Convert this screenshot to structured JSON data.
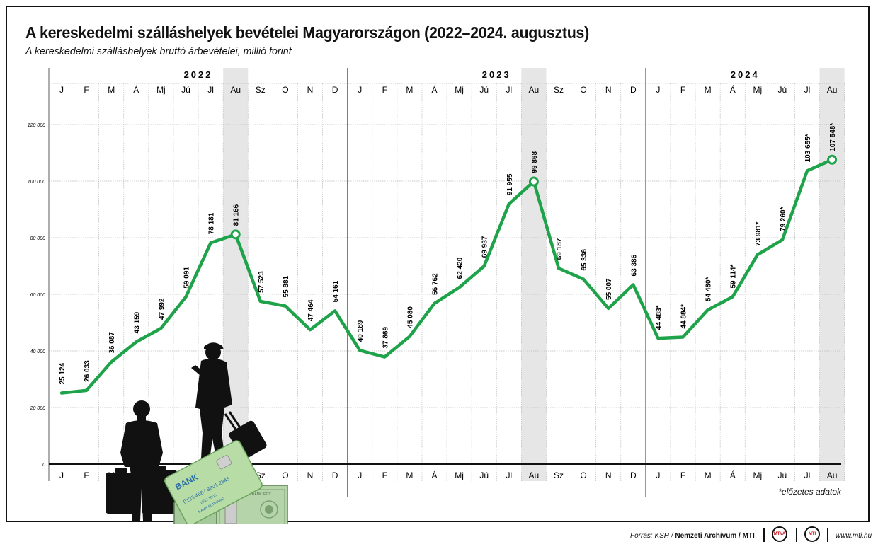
{
  "title": "A kereskedelmi szálláshelyek bevételei Magyarországon (2022–2024. augusztus)",
  "subtitle": "A kereskedelmi szálláshelyek bruttó árbevételei, millió forint",
  "footnote": "*előzetes adatok",
  "footer": {
    "source_prefix": "Forrás: KSH / ",
    "source_bold": "Nemzeti Archívum / MTI",
    "logo1": "MTVA",
    "logo2": "MTI",
    "website": "www.mti.hu"
  },
  "illustration": {
    "card_bank": "BANK",
    "card_number": "0123 4567 8901 2345",
    "card_expiry": "10/11  10/15",
    "card_name": "NAME SURNAME",
    "banknote_label": "BANKJEGY"
  },
  "colors": {
    "line": "#1fa34a",
    "highlight_band": "#e6e6e6",
    "grid": "#bdbdbd",
    "axis": "#111111"
  },
  "chart_data": {
    "type": "line",
    "years": [
      "2022",
      "2023",
      "2024"
    ],
    "x": [
      "J",
      "F",
      "M",
      "Á",
      "Mj",
      "Jú",
      "Jl",
      "Au",
      "Sz",
      "O",
      "N",
      "D",
      "J",
      "F",
      "M",
      "Á",
      "Mj",
      "Jú",
      "Jl",
      "Au",
      "Sz",
      "O",
      "N",
      "D",
      "J",
      "F",
      "M",
      "Á",
      "Mj",
      "Jú",
      "Jl",
      "Au"
    ],
    "values": [
      25124,
      26033,
      36087,
      43159,
      47992,
      59091,
      78181,
      81166,
      57523,
      55881,
      47464,
      54161,
      40189,
      37869,
      45080,
      56762,
      62420,
      69937,
      91955,
      99868,
      69187,
      65336,
      55007,
      63386,
      44483,
      44884,
      54480,
      59114,
      73981,
      79260,
      103655,
      107548
    ],
    "value_labels": [
      "25 124",
      "26 033",
      "36 087",
      "43 159",
      "47 992",
      "59 091",
      "78 181",
      "81 166",
      "57 523",
      "55 881",
      "47 464",
      "54 161",
      "40 189",
      "37 869",
      "45 080",
      "56 762",
      "62 420",
      "69 937",
      "91 955",
      "99 868",
      "69 187",
      "65 336",
      "55 007",
      "63 386",
      "44 483*",
      "44 884*",
      "54 480*",
      "59 114*",
      "73 981*",
      "79 260*",
      "103 655*",
      "107 548*"
    ],
    "highlighted_points": [
      7,
      19,
      31
    ],
    "y_ticks": [
      0,
      20000,
      40000,
      60000,
      80000,
      100000,
      120000
    ],
    "y_tick_labels": [
      "0",
      "20 000",
      "40 000",
      "60 000",
      "80 000",
      "100 000",
      "120 000"
    ],
    "ylim": [
      0,
      140000
    ],
    "grid": true,
    "series": [
      {
        "values_key": "values"
      }
    ]
  }
}
